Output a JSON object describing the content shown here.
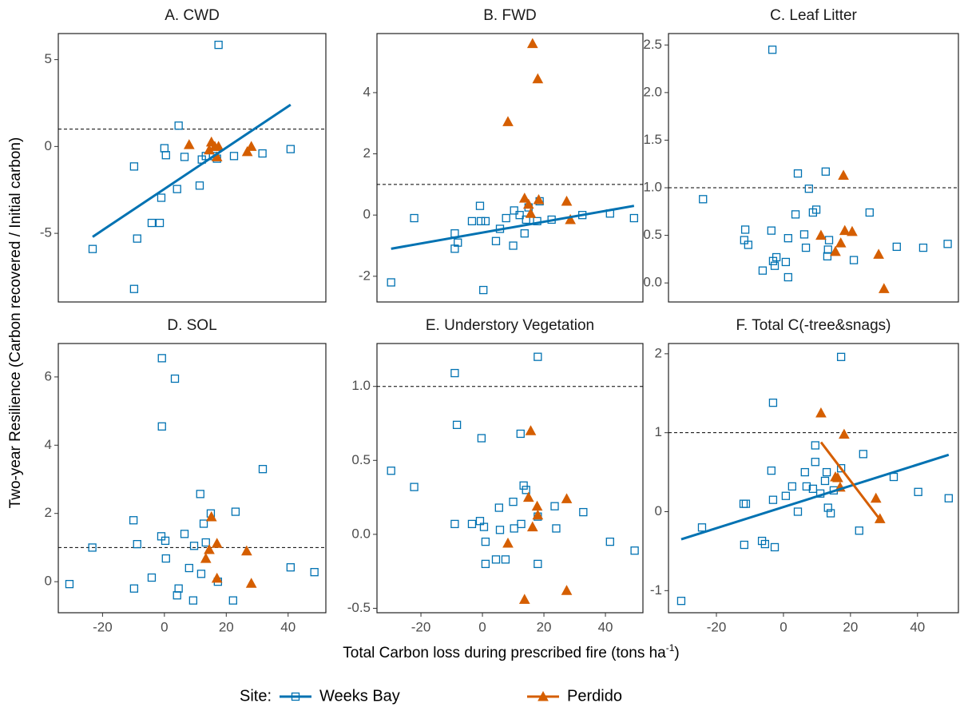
{
  "chart_data": [
    {
      "type": "scatter",
      "title": "A. CWD",
      "xlim": [
        -34.3,
        52.2
      ],
      "ylim": [
        -8.95,
        6.5
      ],
      "yticks": [
        -5,
        0,
        5
      ],
      "hline": 1,
      "series": [
        {
          "name": "Weeks Bay",
          "color": "#0072B2",
          "marker": "square",
          "x": [
            -23.2,
            -9.8,
            -9.8,
            -8.8,
            -4.1,
            -1.5,
            -1,
            0,
            0.5,
            4.1,
            4.6,
            6.5,
            11.4,
            12.1,
            13.4,
            15.7,
            17,
            17.5,
            22.5,
            31.7,
            40.8
          ],
          "values": [
            -5.9,
            -1.15,
            -8.2,
            -5.3,
            -4.4,
            -4.4,
            -2.95,
            -0.1,
            -0.5,
            -2.45,
            1.2,
            -0.6,
            -2.25,
            -0.75,
            -0.55,
            -0.55,
            -0.7,
            5.85,
            -0.55,
            -0.4,
            -0.15
          ],
          "fit": {
            "x": [
              -23.2,
              40.8
            ],
            "y": [
              -5.2,
              2.4
            ]
          }
        },
        {
          "name": "Perdido",
          "color": "#D55E00",
          "marker": "triangle",
          "x": [
            8,
            14.5,
            15.2,
            16.3,
            17,
            17.5,
            26.8,
            28.1
          ],
          "values": [
            0.1,
            -0.2,
            0.25,
            0,
            -0.6,
            0,
            -0.3,
            0
          ]
        }
      ]
    },
    {
      "type": "scatter",
      "title": "B. FWD",
      "xlim": [
        -34.3,
        52.2
      ],
      "ylim": [
        -2.84,
        5.93
      ],
      "yticks": [
        -2,
        0,
        2,
        4
      ],
      "hline": 1,
      "series": [
        {
          "name": "Weeks Bay",
          "color": "#0072B2",
          "marker": "square",
          "x": [
            -29.7,
            -22.2,
            -9,
            -9,
            -8,
            -3.4,
            -0.8,
            -0.5,
            0.3,
            1,
            4.4,
            5.7,
            7.7,
            10,
            10.3,
            12.1,
            13.7,
            14.2,
            15,
            17.8,
            18.6,
            22.5,
            32.5,
            41.5,
            49.3
          ],
          "values": [
            -2.2,
            -0.1,
            -0.6,
            -1.1,
            -0.9,
            -0.2,
            0.3,
            -0.2,
            -2.45,
            -0.2,
            -0.85,
            -0.45,
            -0.1,
            -1,
            0.15,
            0,
            -0.6,
            -0.15,
            0.25,
            -0.2,
            0.45,
            -0.15,
            0,
            0.05,
            -0.1
          ],
          "fit": {
            "x": [
              -29.7,
              49.3
            ],
            "y": [
              -1.1,
              0.3
            ]
          }
        },
        {
          "name": "Perdido",
          "color": "#D55E00",
          "marker": "triangle",
          "x": [
            8.3,
            13.7,
            15,
            15.7,
            16.3,
            18,
            18.3,
            27.4,
            28.6
          ],
          "values": [
            3.05,
            0.55,
            0.35,
            0.05,
            5.6,
            4.45,
            0.5,
            0.45,
            -0.15
          ]
        }
      ]
    },
    {
      "type": "scatter",
      "title": "C. Leaf Litter",
      "xlim": [
        -34.3,
        52.2
      ],
      "ylim": [
        -0.2,
        2.62
      ],
      "yticks": [
        {
          "value": 0,
          "label": "0.0"
        },
        0.5,
        {
          "value": 1,
          "label": "1.0"
        },
        1.5,
        {
          "value": 2,
          "label": "2.0"
        },
        2.5
      ],
      "hline": 1,
      "series": [
        {
          "name": "Weeks Bay",
          "color": "#0072B2",
          "marker": "square",
          "x": [
            -24,
            -11.4,
            -11.7,
            -10.5,
            -6.2,
            -3.6,
            -3.1,
            -2.6,
            -3.3,
            -2.1,
            0.7,
            1.4,
            1.4,
            3.6,
            4.3,
            6.2,
            6.7,
            7.6,
            8.8,
            9.8,
            12.6,
            13.1,
            13.6,
            13.3,
            21,
            25.7,
            33.8,
            41.7,
            49
          ],
          "values": [
            0.88,
            0.56,
            0.45,
            0.4,
            0.13,
            0.55,
            0.23,
            0.18,
            2.45,
            0.27,
            0.22,
            0.06,
            0.47,
            0.72,
            1.15,
            0.51,
            0.37,
            0.99,
            0.74,
            0.77,
            1.17,
            0.28,
            0.45,
            0.35,
            0.24,
            0.74,
            0.38,
            0.37,
            0.41
          ]
        },
        {
          "name": "Perdido",
          "color": "#D55E00",
          "marker": "triangle",
          "x": [
            11.2,
            15.5,
            17.9,
            17.1,
            18.3,
            20.5,
            28.4,
            30
          ],
          "values": [
            0.5,
            0.33,
            1.13,
            0.42,
            0.55,
            0.54,
            0.3,
            -0.06
          ]
        }
      ]
    },
    {
      "type": "scatter",
      "title": "D. SOL",
      "xlim": [
        -34.3,
        52.2
      ],
      "ylim": [
        -0.91,
        6.98
      ],
      "xticks": [
        -20,
        0,
        20,
        40
      ],
      "yticks": [
        0,
        2,
        4,
        6
      ],
      "hline": 1,
      "series": [
        {
          "name": "Weeks Bay",
          "color": "#0072B2",
          "marker": "square",
          "x": [
            -30.7,
            -23.3,
            -10,
            -9.8,
            -8.8,
            -4.1,
            -1,
            -0.8,
            -0.8,
            0.3,
            0.5,
            3.4,
            4.1,
            4.6,
            6.5,
            8,
            9.3,
            9.6,
            11.6,
            11.9,
            12.7,
            13.4,
            15,
            17.3,
            22.2,
            23,
            31.8,
            40.8,
            48.5
          ],
          "values": [
            -0.07,
            1,
            1.8,
            -0.2,
            1.1,
            0.12,
            1.33,
            4.55,
            6.55,
            1.2,
            0.68,
            5.95,
            -0.4,
            -0.2,
            1.4,
            0.4,
            -0.55,
            1.05,
            2.57,
            0.23,
            1.7,
            1.15,
            2,
            0,
            -0.55,
            2.05,
            3.3,
            0.42,
            0.28
          ]
        },
        {
          "name": "Perdido",
          "color": "#D55E00",
          "marker": "triangle",
          "x": [
            13.4,
            14.5,
            15.2,
            17,
            17,
            26.6,
            28.1
          ],
          "values": [
            0.68,
            0.94,
            1.9,
            1.12,
            0.1,
            0.9,
            -0.05
          ]
        }
      ]
    },
    {
      "type": "scatter",
      "title": "E. Understory Vegetation",
      "xlim": [
        -34.3,
        52.2
      ],
      "ylim": [
        -0.53,
        1.29
      ],
      "xticks": [
        -20,
        0,
        20,
        40
      ],
      "yticks": [
        -0.5,
        {
          "value": 0,
          "label": "0.0"
        },
        0.5,
        {
          "value": 1,
          "label": "1.0"
        }
      ],
      "hline": 1,
      "series": [
        {
          "name": "Weeks Bay",
          "color": "#0072B2",
          "marker": "square",
          "x": [
            -29.7,
            -22.2,
            -9,
            -8.3,
            -9,
            -3.4,
            -0.8,
            -0.3,
            0.5,
            1,
            1,
            4.4,
            5.4,
            5.7,
            7.5,
            10,
            10.3,
            12.4,
            12.6,
            13.4,
            14.2,
            18,
            18,
            18,
            23.5,
            24,
            32.8,
            41.5,
            49.5
          ],
          "values": [
            0.43,
            0.32,
            1.09,
            0.74,
            0.07,
            0.07,
            0.09,
            0.65,
            0.05,
            -0.05,
            -0.2,
            -0.17,
            0.18,
            0.03,
            -0.17,
            0.22,
            0.04,
            0.68,
            0.07,
            0.33,
            0.3,
            1.2,
            0.12,
            -0.2,
            0.19,
            0.04,
            0.15,
            -0.05,
            -0.11
          ]
        },
        {
          "name": "Perdido",
          "color": "#D55E00",
          "marker": "triangle",
          "x": [
            8.3,
            13.7,
            15,
            15.7,
            16.3,
            17.8,
            18,
            27.4,
            27.4
          ],
          "values": [
            -0.06,
            -0.44,
            0.25,
            0.7,
            0.05,
            0.19,
            0.13,
            0.24,
            -0.38
          ]
        }
      ]
    },
    {
      "type": "scatter",
      "title": "F. Total C(-tree&snags)",
      "xlim": [
        -34.3,
        52.2
      ],
      "ylim": [
        -1.28,
        2.13
      ],
      "xticks": [
        -20,
        0,
        20,
        40
      ],
      "yticks": [
        -1,
        0,
        1,
        2
      ],
      "hline": 1,
      "series": [
        {
          "name": "Weeks Bay",
          "color": "#0072B2",
          "marker": "square",
          "x": [
            -30.5,
            -24.3,
            -11.9,
            -11.2,
            -11.7,
            -6.4,
            -5.5,
            -3.6,
            -3.1,
            -3.1,
            -2.6,
            0.7,
            2.6,
            4.3,
            6.4,
            6.9,
            8.8,
            9.5,
            11,
            9.5,
            12.4,
            12.9,
            13.3,
            14.1,
            15,
            17.2,
            17.2,
            22.6,
            23.8,
            32.9,
            40.2,
            49.3
          ],
          "values": [
            -1.13,
            -0.2,
            0.1,
            0.1,
            -0.42,
            -0.37,
            -0.41,
            0.52,
            1.38,
            0.15,
            -0.45,
            0.2,
            0.32,
            0,
            0.5,
            0.32,
            0.29,
            0.63,
            0.23,
            0.84,
            0.39,
            0.5,
            0.05,
            -0.02,
            0.27,
            1.96,
            0.55,
            -0.24,
            0.73,
            0.44,
            0.25,
            0.17
          ],
          "fit": {
            "x": [
              -30.5,
              49.3
            ],
            "y": [
              -0.35,
              0.72
            ]
          }
        },
        {
          "name": "Perdido",
          "color": "#D55E00",
          "marker": "triangle",
          "x": [
            11.2,
            15.5,
            16.2,
            16.9,
            18.1,
            27.6,
            28.8
          ],
          "values": [
            1.25,
            0.44,
            0.43,
            0.31,
            0.98,
            0.17,
            -0.09
          ],
          "fit": {
            "x": [
              11.2,
              28.8
            ],
            "y": [
              0.88,
              -0.1
            ]
          }
        }
      ]
    }
  ],
  "y_label": "Two-year Resilience (Carbon recovered / Initial carbon)",
  "x_label": "Total Carbon loss during prescribed fire (tons ha",
  "x_label_sup": "-1",
  "x_label_end": ")",
  "legend_title": "Site:"
}
